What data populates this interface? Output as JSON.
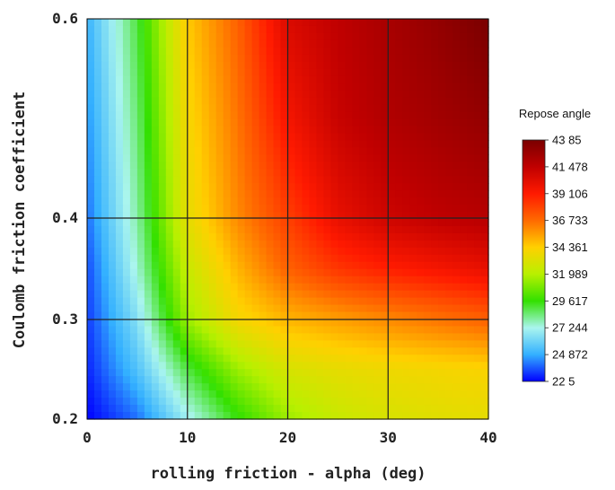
{
  "chart_data": {
    "type": "heatmap",
    "title": "",
    "xlabel": "rolling friction - alpha (deg)",
    "ylabel": "Coulomb friction coefficient",
    "xlim": [
      0,
      40
    ],
    "ylim": [
      0.2,
      0.6
    ],
    "x_ticks": [
      {
        "value": 0,
        "label": "0"
      },
      {
        "value": 10,
        "label": "10"
      },
      {
        "value": 20,
        "label": "20"
      },
      {
        "value": 30,
        "label": "30"
      },
      {
        "value": 40,
        "label": "40"
      }
    ],
    "y_ticks": [
      {
        "value": 0.2,
        "label": "0.2"
      },
      {
        "value": 0.3,
        "label": "0.3"
      },
      {
        "value": 0.4,
        "label": "0.4"
      },
      {
        "value": 0.6,
        "label": "0.6"
      }
    ],
    "y_breaks": [
      0.2,
      0.3,
      0.4,
      0.6
    ],
    "grid": true,
    "colorbar": {
      "title": "Repose angle",
      "min": 22.5,
      "max": 43.85,
      "labels": [
        "43 85",
        "41 478",
        "39 106",
        "36 733",
        "34 361",
        "31 989",
        "29 617",
        "27 244",
        "24 872",
        "22 5"
      ],
      "colors": [
        "#7a0000",
        "#c00000",
        "#ff1a00",
        "#ff6a00",
        "#ffd000",
        "#b8f000",
        "#33e000",
        "#aaf5ee",
        "#33b0ff",
        "#0000ff"
      ]
    },
    "values_note": "",
    "x": [
      0,
      5,
      10,
      15,
      20,
      25,
      30,
      35,
      40
    ],
    "y": [
      0.2,
      0.25,
      0.3,
      0.35,
      0.4,
      0.5,
      0.6
    ],
    "z": [
      [
        22.5,
        24.0,
        27.0,
        29.5,
        31.5,
        32.5,
        33.0,
        33.3,
        33.5
      ],
      [
        23.0,
        25.5,
        29.0,
        31.5,
        33.0,
        33.5,
        33.8,
        34.0,
        34.2
      ],
      [
        23.3,
        26.5,
        31.5,
        34.0,
        35.0,
        35.5,
        36.0,
        36.5,
        37.0
      ],
      [
        23.5,
        27.5,
        32.5,
        35.0,
        37.0,
        38.3,
        39.0,
        39.5,
        40.0
      ],
      [
        24.0,
        28.0,
        33.5,
        36.0,
        38.0,
        40.0,
        41.0,
        41.5,
        41.8
      ],
      [
        24.5,
        28.5,
        34.0,
        36.5,
        39.5,
        41.2,
        42.0,
        42.5,
        43.0
      ],
      [
        25.0,
        29.0,
        34.5,
        37.0,
        40.5,
        41.5,
        42.3,
        43.0,
        43.85
      ]
    ]
  }
}
